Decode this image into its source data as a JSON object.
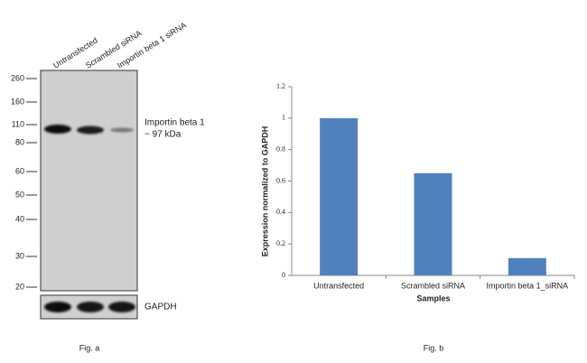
{
  "blot": {
    "lanes": [
      "Untransfected",
      "Scrambled siRNA",
      "Importin beta 1 siRNA"
    ],
    "markers": [
      260,
      160,
      110,
      80,
      60,
      50,
      40,
      30,
      20
    ],
    "target": [
      "Importin beta 1",
      "~ 97 kDa"
    ],
    "loading_control": "GAPDH",
    "caption": "Fig. a"
  },
  "chart_data": {
    "type": "bar",
    "categories": [
      "Untransfected",
      "Scrambled siRNA",
      "Importin beta 1_siRNA"
    ],
    "values": [
      1,
      0.65,
      0.11
    ],
    "color": "#4f81bd",
    "ylim": [
      0,
      1.2
    ],
    "yticks": [
      0,
      0.2,
      0.4,
      0.6,
      0.8,
      1,
      1.2
    ],
    "y_label": "Expression  normalized to GAPDH",
    "x_label": "Samples",
    "caption": "Fig. b"
  }
}
